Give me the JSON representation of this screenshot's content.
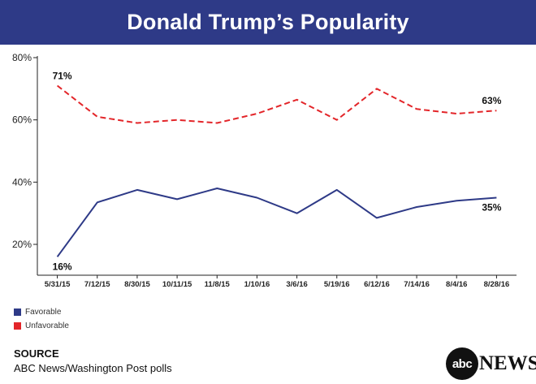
{
  "header": {
    "title": "Donald Trump’s Popularity"
  },
  "chart_data": {
    "type": "line",
    "title": "Donald Trump’s Popularity",
    "categories": [
      "5/31/15",
      "7/12/15",
      "8/30/15",
      "10/11/15",
      "11/8/15",
      "1/10/16",
      "3/6/16",
      "5/19/16",
      "6/12/16",
      "7/14/16",
      "8/4/16",
      "8/28/16"
    ],
    "series": [
      {
        "name": "Favorable",
        "color": "#2e3a87",
        "style": "solid",
        "values": [
          16,
          33.5,
          37.5,
          34.5,
          38,
          35,
          30,
          37.5,
          28.5,
          32,
          34,
          35
        ]
      },
      {
        "name": "Unfavorable",
        "color": "#e3262a",
        "style": "dashed",
        "values": [
          71,
          61,
          59,
          60,
          59,
          62,
          66.5,
          60,
          70,
          63.5,
          62,
          63
        ]
      }
    ],
    "y_ticks": [
      "20%",
      "40%",
      "60%",
      "80%"
    ],
    "y_tick_values": [
      20,
      40,
      60,
      80
    ],
    "ylim": [
      10,
      80
    ],
    "annotations": [
      {
        "series": 0,
        "point": 0,
        "text": "16%"
      },
      {
        "series": 0,
        "point": 11,
        "text": "35%"
      },
      {
        "series": 1,
        "point": 0,
        "text": "71%"
      },
      {
        "series": 1,
        "point": 11,
        "text": "63%"
      }
    ],
    "grid": false,
    "legend_position": "bottom-left"
  },
  "legend": [
    {
      "label": "Favorable",
      "color": "#2e3a87"
    },
    {
      "label": "Unfavorable",
      "color": "#e3262a"
    }
  ],
  "source": {
    "heading": "SOURCE",
    "text": "ABC News/Washington Post polls"
  },
  "logo": {
    "mark": "abc",
    "word": "NEWS"
  }
}
